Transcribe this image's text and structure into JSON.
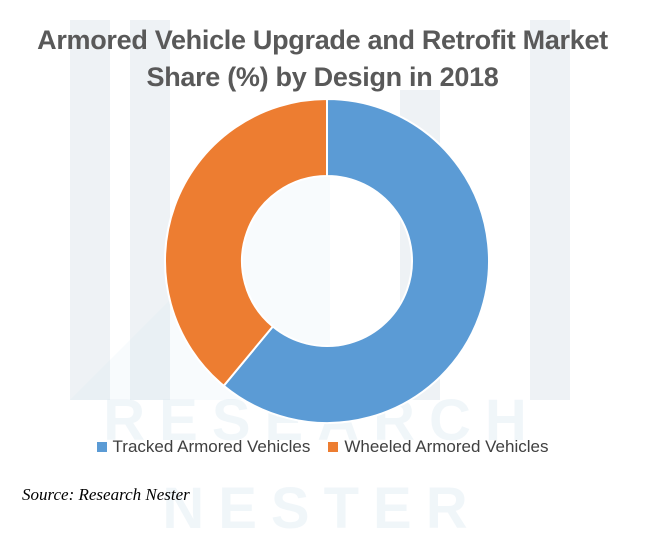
{
  "colors": {
    "tracked": "#5b9bd5",
    "wheeled": "#ed7d31"
  },
  "watermark_text": "RESEARCH NESTER",
  "source": "Source: Research Nester",
  "chart_data": {
    "type": "pie",
    "variant": "donut",
    "title_line1": "Armored Vehicle Upgrade and Retrofit Market",
    "title_line2": "Share (%) by Design in 2018",
    "categories": [
      "Tracked Armored Vehicles",
      "Wheeled Armored Vehicles"
    ],
    "values": [
      61,
      39
    ],
    "unit": "%",
    "legend_position": "bottom"
  }
}
